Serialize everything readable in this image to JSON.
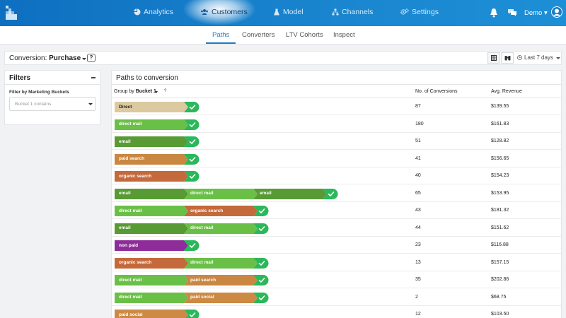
{
  "nav": {
    "items": [
      {
        "label": "Analytics",
        "icon": "pie-chart-icon"
      },
      {
        "label": "Customers",
        "icon": "users-icon"
      },
      {
        "label": "Model",
        "icon": "flask-icon"
      },
      {
        "label": "Channels",
        "icon": "sitemap-icon"
      },
      {
        "label": "Settings",
        "icon": "gears-icon"
      }
    ],
    "active": "Customers",
    "user": "Demo"
  },
  "subnav": {
    "tabs": [
      "Paths",
      "Converters",
      "LTV Cohorts",
      "Inspect"
    ],
    "active": "Paths"
  },
  "conversion": {
    "prefix": "Conversion:",
    "value": "Purchase",
    "help": "?",
    "date_range": "Last 7 days"
  },
  "filters": {
    "title": "Filters",
    "label": "Filter by Marketing Buckets",
    "placeholder": "Bucket 1 contains"
  },
  "table": {
    "title": "Paths to conversion",
    "group_by_prefix": "Group by",
    "group_by_value": "Bucket 1",
    "group_by_help": "?",
    "col_conversions": "No. of Conversions",
    "col_revenue": "Avg. Revenue",
    "channel_colors": {
      "Direct": "#dcc9a0",
      "direct mail": "#6ac047",
      "email": "#589a34",
      "paid search": "#c98742",
      "organic search": "#c4693b",
      "non paid": "#8e2c9a",
      "paid social": "#cc8a45"
    },
    "check_color": "#2ab85a",
    "rows": [
      {
        "path": [
          "Direct"
        ],
        "conversions": "87",
        "revenue": "$139.55"
      },
      {
        "path": [
          "direct mail"
        ],
        "conversions": "180",
        "revenue": "$161.83"
      },
      {
        "path": [
          "email"
        ],
        "conversions": "51",
        "revenue": "$128.82"
      },
      {
        "path": [
          "paid search"
        ],
        "conversions": "41",
        "revenue": "$156.65"
      },
      {
        "path": [
          "organic search"
        ],
        "conversions": "40",
        "revenue": "$154.23"
      },
      {
        "path": [
          "email",
          "direct mail",
          "email"
        ],
        "conversions": "65",
        "revenue": "$153.95"
      },
      {
        "path": [
          "direct mail",
          "organic search"
        ],
        "conversions": "43",
        "revenue": "$181.32"
      },
      {
        "path": [
          "email",
          "direct mail"
        ],
        "conversions": "44",
        "revenue": "$151.62"
      },
      {
        "path": [
          "non paid"
        ],
        "conversions": "23",
        "revenue": "$116.88"
      },
      {
        "path": [
          "organic search",
          "direct mail"
        ],
        "conversions": "13",
        "revenue": "$157.15"
      },
      {
        "path": [
          "direct mail",
          "paid search"
        ],
        "conversions": "35",
        "revenue": "$202.86"
      },
      {
        "path": [
          "direct mail",
          "paid social"
        ],
        "conversions": "2",
        "revenue": "$68.75"
      },
      {
        "path": [
          "paid social"
        ],
        "conversions": "12",
        "revenue": "$103.50"
      }
    ]
  }
}
